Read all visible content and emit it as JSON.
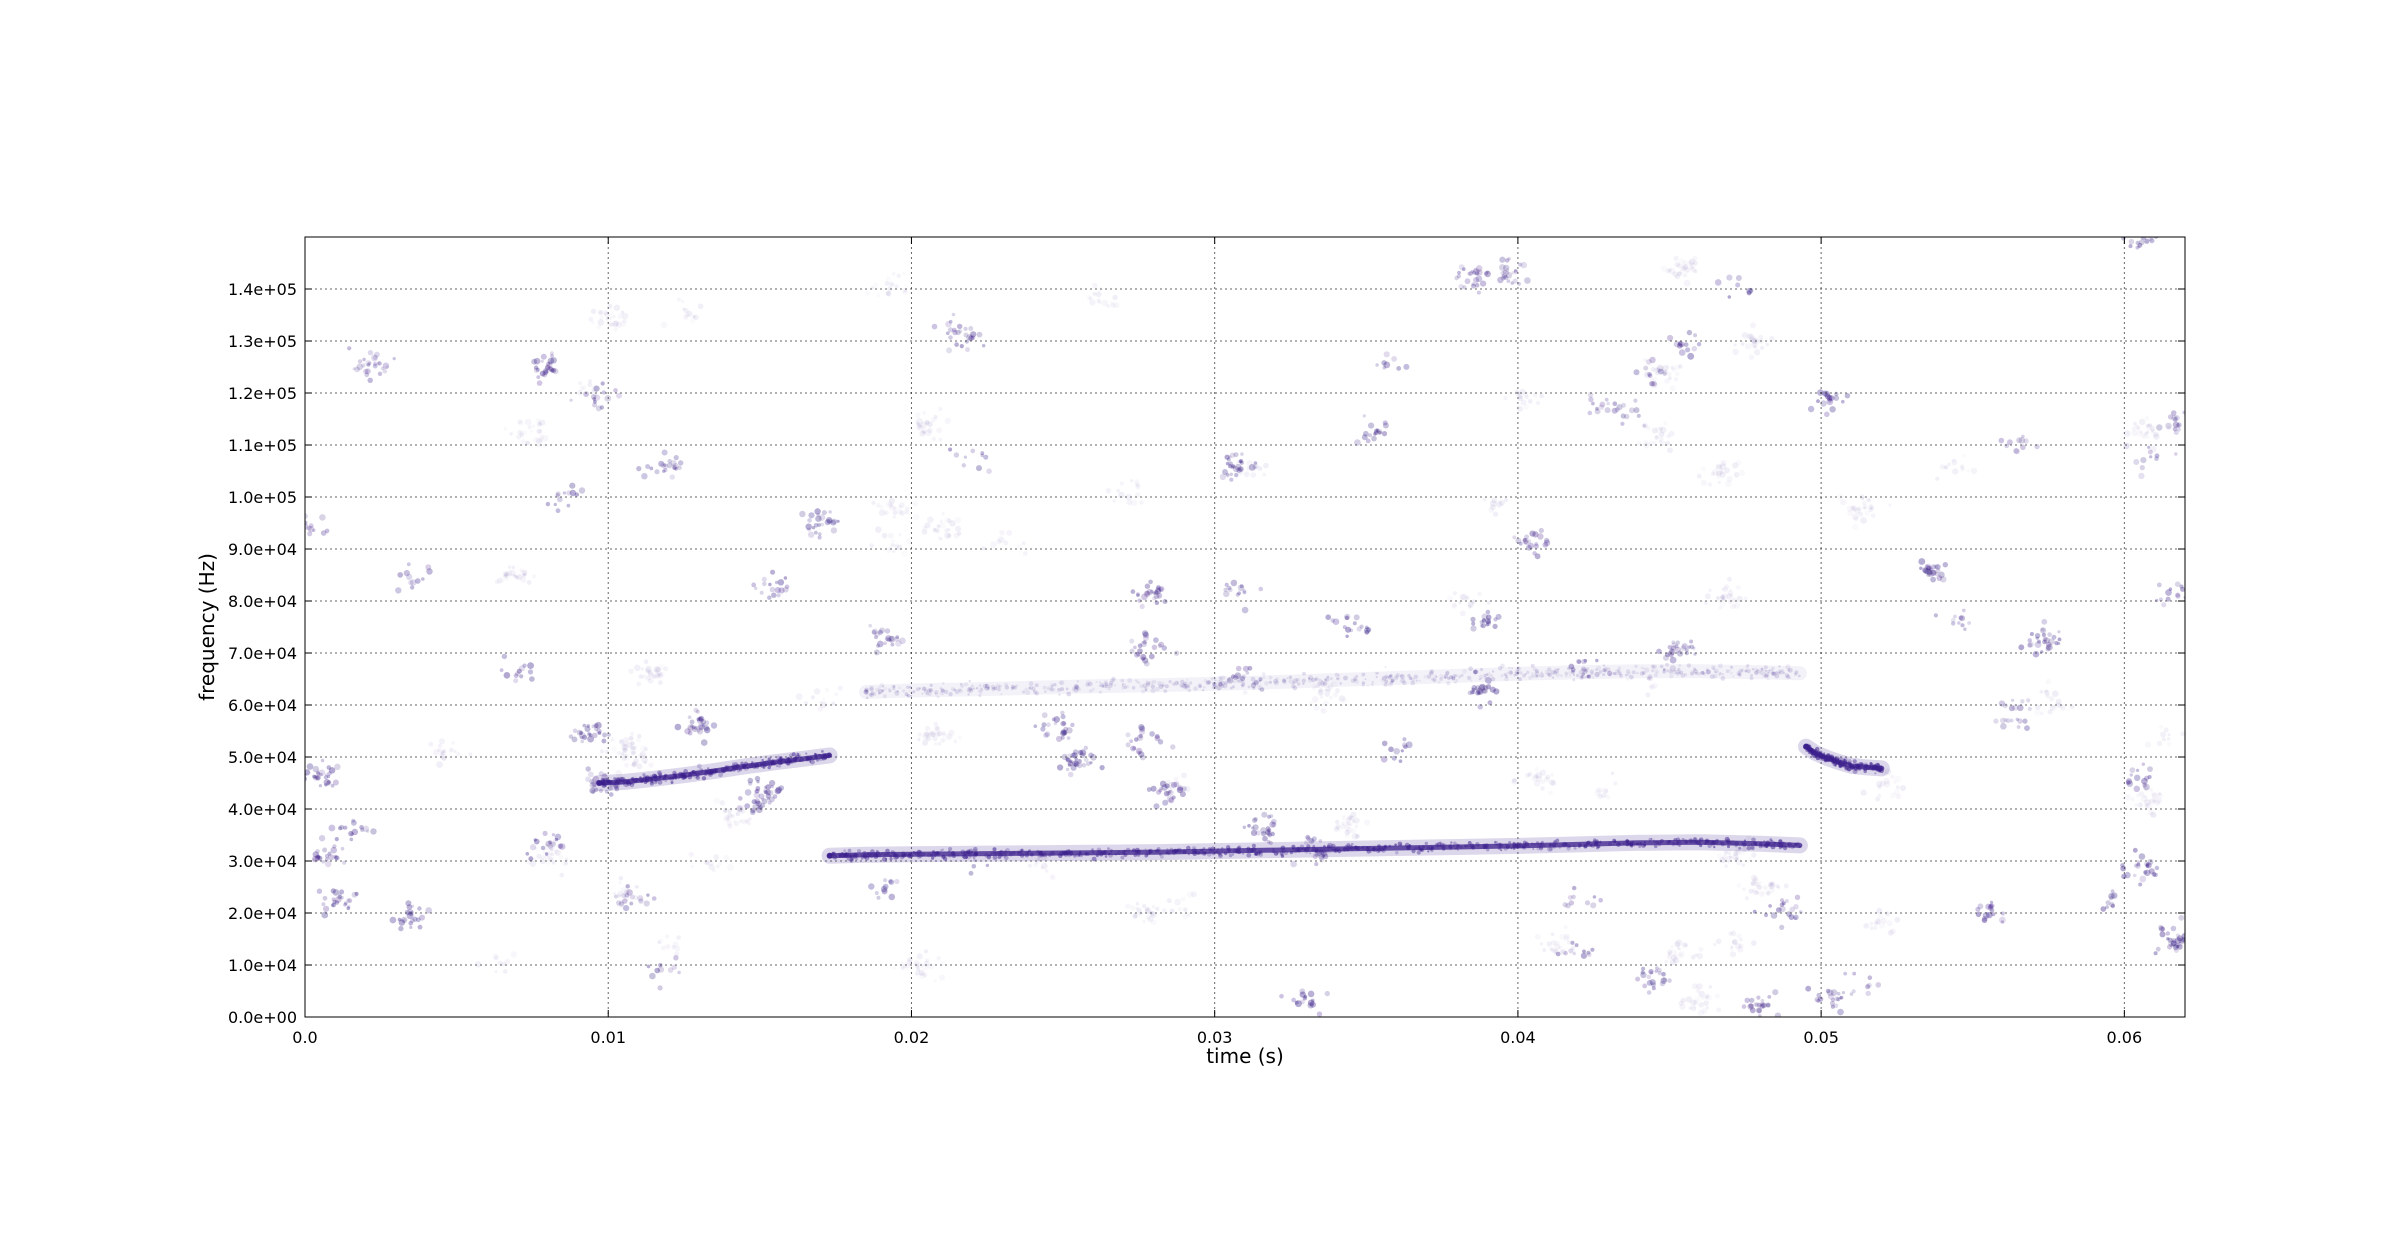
{
  "chart_data": {
    "type": "scatter",
    "title": "",
    "xlabel": "time (s)",
    "ylabel": "frequency (Hz)",
    "xlim": [
      0.0,
      0.062
    ],
    "ylim": [
      0,
      150000
    ],
    "grid": true,
    "grid_style": "dotted",
    "x_ticks": [
      0.0,
      0.01,
      0.02,
      0.03,
      0.04,
      0.05,
      0.06
    ],
    "x_tick_labels": [
      "0.0",
      "0.01",
      "0.02",
      "0.03",
      "0.04",
      "0.05",
      "0.06"
    ],
    "y_ticks": [
      0,
      10000,
      20000,
      30000,
      40000,
      50000,
      60000,
      70000,
      80000,
      90000,
      100000,
      110000,
      120000,
      130000,
      140000
    ],
    "y_tick_labels": [
      "0.0e+00",
      "1.0e+04",
      "2.0e+04",
      "3.0e+04",
      "4.0e+04",
      "5.0e+04",
      "6.0e+04",
      "7.0e+04",
      "8.0e+04",
      "9.0e+04",
      "1.0e+05",
      "1.1e+05",
      "1.2e+05",
      "1.3e+05",
      "1.4e+05"
    ],
    "point_color": "#3b1f8c",
    "background_noise": {
      "density": "uniform",
      "x_range": [
        0.0,
        0.062
      ],
      "y_range": [
        0,
        150000
      ]
    },
    "series": [
      {
        "x": [
          0.0097,
          0.0105,
          0.0115,
          0.0125,
          0.0135,
          0.0145,
          0.0155,
          0.0165,
          0.0173
        ],
        "y": [
          45000,
          45200,
          45800,
          46500,
          47300,
          48200,
          49000,
          49700,
          50300
        ],
        "strength": "strong"
      },
      {
        "x": [
          0.0173,
          0.0185,
          0.02,
          0.022,
          0.024,
          0.026,
          0.028,
          0.03,
          0.032,
          0.034,
          0.036,
          0.038,
          0.04,
          0.042,
          0.044,
          0.046,
          0.048,
          0.0493
        ],
        "y": [
          31000,
          31200,
          31300,
          31400,
          31500,
          31600,
          31700,
          31900,
          32100,
          32300,
          32500,
          32700,
          32900,
          33200,
          33500,
          33600,
          33300,
          33000
        ],
        "strength": "strong"
      },
      {
        "x": [
          0.0185,
          0.02,
          0.022,
          0.024,
          0.026,
          0.028,
          0.03,
          0.032,
          0.034,
          0.036,
          0.038,
          0.04,
          0.042,
          0.044,
          0.046,
          0.048,
          0.0493
        ],
        "y": [
          62500,
          62800,
          63000,
          63300,
          63600,
          63800,
          64100,
          64400,
          64800,
          65200,
          65600,
          66000,
          66300,
          66500,
          66500,
          66300,
          66100
        ],
        "strength": "faint"
      },
      {
        "x": [
          0.0495,
          0.0498,
          0.0502,
          0.0506,
          0.051,
          0.0515,
          0.052
        ],
        "y": [
          52000,
          50800,
          49800,
          49000,
          48300,
          48000,
          47800
        ],
        "strength": "strong"
      }
    ]
  }
}
